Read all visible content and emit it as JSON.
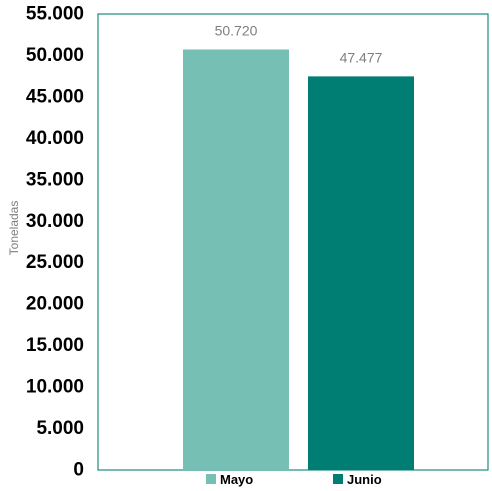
{
  "chart_data": {
    "type": "bar",
    "categories": [
      "Mayo",
      "Junio"
    ],
    "values": [
      50720,
      47477
    ],
    "data_labels": [
      "50.720",
      "47.477"
    ],
    "colors": [
      "#76BFB5",
      "#007E74"
    ],
    "frame_color": "#1C8C82",
    "ylabel": "Toneladas",
    "ylim": [
      0,
      55000
    ],
    "yticks": [
      0,
      5000,
      10000,
      15000,
      20000,
      25000,
      30000,
      35000,
      40000,
      45000,
      50000,
      55000
    ],
    "ytick_labels": [
      "0",
      "5.000",
      "10.000",
      "15.000",
      "20.000",
      "25.000",
      "30.000",
      "35.000",
      "40.000",
      "45.000",
      "50.000",
      "55.000"
    ],
    "grid": false,
    "legend": {
      "position": "bottom",
      "entries": [
        {
          "label": "Mayo",
          "color": "#76BFB5"
        },
        {
          "label": "Junio",
          "color": "#007E74"
        }
      ]
    }
  }
}
